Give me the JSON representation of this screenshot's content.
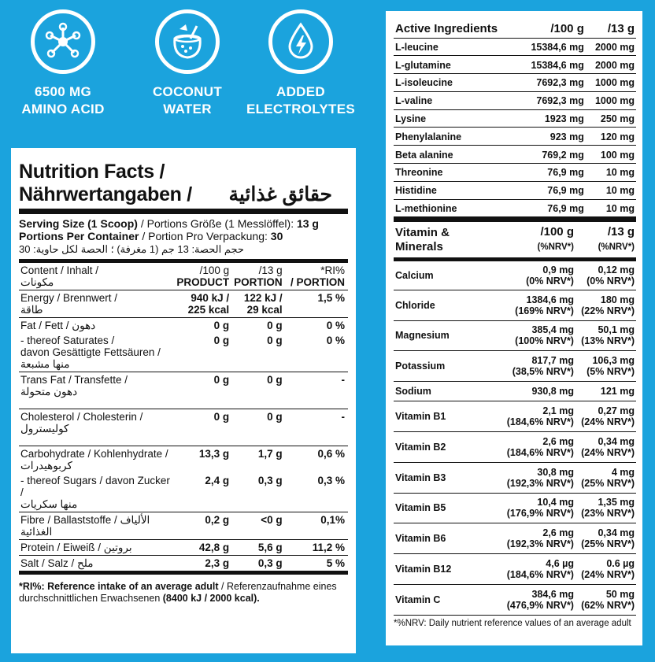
{
  "features": [
    {
      "icon": "molecule-icon",
      "line1": "6500 MG",
      "line2": "AMINO ACID"
    },
    {
      "icon": "coconut-icon",
      "line1": "COCONUT",
      "line2": "WATER"
    },
    {
      "icon": "water-drop-bolt-icon",
      "line1": "ADDED",
      "line2": "ELECTROLYTES"
    }
  ],
  "nutrition": {
    "title1": "Nutrition Facts /",
    "title2": "Nährwertangaben /",
    "title_ar": "حقائق غذائية",
    "serving_label": "Serving Size (1 Scoop)",
    "serving_de": " / Portions Größe (1 Messlöffel): ",
    "serving_value": "13 g",
    "portions_label": "Portions Per Container",
    "portions_de": " / Portion Pro Verpackung: ",
    "portions_value": "30",
    "serving_ar": "حجم الحصة: 13 جم (1 مغرفة) ؛ الحصة لكل حاوية: 30",
    "header": {
      "content": "Content / Inhalt /",
      "content_ar": "مكونات",
      "col1a": "/100 g",
      "col1b": "PRODUCT",
      "col2a": "/13 g",
      "col2b": "PORTION",
      "col3a": "*RI%",
      "col3b": "/ PORTION"
    },
    "rows": [
      {
        "label": "Energy / Brennwert /",
        "ar": "طاقة",
        "v1": "940 kJ /\n225 kcal",
        "v2": "122 kJ /\n29 kcal",
        "v3": "1,5 %"
      },
      {
        "label": "Fat / Fett / دهون",
        "ar": "",
        "v1": "0 g",
        "v2": "0 g",
        "v3": "0 %"
      },
      {
        "label": "- thereof Saturates /\n  davon Gesättigte Fettsäuren /",
        "ar": "منها مشبعة",
        "v1": "0 g",
        "v2": "0 g",
        "v3": "0 %"
      },
      {
        "label": "Trans Fat / Transfette /",
        "ar": "دهون متحولة",
        "v1": "0 g",
        "v2": "0 g",
        "v3": "-"
      },
      {
        "label": "Cholesterol / Cholesterin /",
        "ar": "كوليسترول",
        "v1": "0 g",
        "v2": "0 g",
        "v3": "-"
      },
      {
        "label": "Carbohydrate / Kohlenhydrate /",
        "ar": "كربوهيدرات",
        "v1": "13,3 g",
        "v2": "1,7 g",
        "v3": "0,6 %"
      },
      {
        "label": "- thereof Sugars / davon Zucker /",
        "ar": "منها سكريات",
        "v1": "2,4 g",
        "v2": "0,3 g",
        "v3": "0,3 %"
      },
      {
        "label": "Fibre / Ballaststoffe / الألياف الغذائية",
        "ar": "",
        "v1": "0,2 g",
        "v2": "<0 g",
        "v3": "0,1%"
      },
      {
        "label": "Protein / Eiweiß / بروتين",
        "ar": "",
        "v1": "42,8 g",
        "v2": "5,6 g",
        "v3": "11,2 %"
      },
      {
        "label": "Salt / Salz / ملح",
        "ar": "",
        "v1": "2,3 g",
        "v2": "0,3 g",
        "v3": "5 %"
      }
    ],
    "footnote_bold": "*RI%: Reference intake of an average adult",
    "footnote_rest": " / Referenzaufnahme eines durchschnittlichen Erwachsenen ",
    "footnote_end": "(8400 kJ / 2000 kcal)."
  },
  "active": {
    "header": {
      "name": "Active Ingredients",
      "c1": "/100 g",
      "c2": "/13 g"
    },
    "rows": [
      {
        "name": "L-leucine",
        "v1": "15384,6 mg",
        "v2": "2000 mg"
      },
      {
        "name": "L-glutamine",
        "v1": "15384,6 mg",
        "v2": "2000 mg"
      },
      {
        "name": "L-isoleucine",
        "v1": "7692,3 mg",
        "v2": "1000 mg"
      },
      {
        "name": "L-valine",
        "v1": "7692,3 mg",
        "v2": "1000 mg"
      },
      {
        "name": "Lysine",
        "v1": "1923 mg",
        "v2": "250 mg"
      },
      {
        "name": "Phenylalanine",
        "v1": "923 mg",
        "v2": "120 mg"
      },
      {
        "name": "Beta alanine",
        "v1": "769,2 mg",
        "v2": "100 mg"
      },
      {
        "name": "Threonine",
        "v1": "76,9 mg",
        "v2": "10 mg"
      },
      {
        "name": "Histidine",
        "v1": "76,9 mg",
        "v2": "10 mg"
      },
      {
        "name": "L-methionine",
        "v1": "76,9 mg",
        "v2": "10 mg"
      }
    ]
  },
  "vitamins": {
    "header": {
      "name1": "Vitamin &",
      "name2": "Minerals",
      "c1a": "/100 g",
      "c1b": "(%NRV*)",
      "c2a": "/13 g",
      "c2b": "(%NRV*)"
    },
    "rows": [
      {
        "name": "Calcium",
        "a1": "0,9 mg",
        "a2": "(0% NRV*)",
        "b1": "0,12 mg",
        "b2": "(0% NRV*)"
      },
      {
        "name": "Chloride",
        "a1": "1384,6 mg",
        "a2": "(169% NRV*)",
        "b1": "180 mg",
        "b2": "(22% NRV*)"
      },
      {
        "name": "Magnesium",
        "a1": "385,4 mg",
        "a2": "(100% NRV*)",
        "b1": "50,1 mg",
        "b2": "(13% NRV*)"
      },
      {
        "name": "Potassium",
        "a1": "817,7 mg",
        "a2": "(38,5% NRV*)",
        "b1": "106,3 mg",
        "b2": "(5% NRV*)"
      },
      {
        "name": "Sodium",
        "a1": "930,8 mg",
        "a2": "",
        "b1": "121 mg",
        "b2": ""
      },
      {
        "name": "Vitamin B1",
        "a1": "2,1 mg",
        "a2": "(184,6% NRV*)",
        "b1": "0,27 mg",
        "b2": "(24% NRV*)"
      },
      {
        "name": "Vitamin B2",
        "a1": "2,6 mg",
        "a2": "(184,6% NRV*)",
        "b1": "0,34 mg",
        "b2": "(24% NRV*)"
      },
      {
        "name": "Vitamin B3",
        "a1": "30,8 mg",
        "a2": "(192,3% NRV*)",
        "b1": "4 mg",
        "b2": "(25% NRV*)"
      },
      {
        "name": "Vitamin B5",
        "a1": "10,4 mg",
        "a2": "(176,9% NRV*)",
        "b1": "1,35 mg",
        "b2": "(23% NRV*)"
      },
      {
        "name": "Vitamin B6",
        "a1": "2,6 mg",
        "a2": "(192,3% NRV*)",
        "b1": "0,34 mg",
        "b2": "(25% NRV*)"
      },
      {
        "name": "Vitamin B12",
        "a1": "4,6 µg",
        "a2": "(184,6% NRV*)",
        "b1": "0.6 µg",
        "b2": "(24% NRV*)"
      },
      {
        "name": "Vitamin C",
        "a1": "384,6 mg",
        "a2": "(476,9% NRV*)",
        "b1": "50 mg",
        "b2": "(62% NRV*)"
      }
    ],
    "footnote": "*%NRV: Daily nutrient reference values of an average adult"
  }
}
